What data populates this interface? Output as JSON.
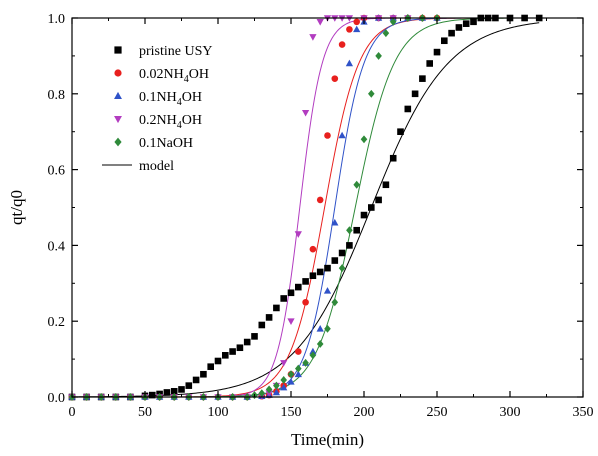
{
  "chart_data": {
    "type": "scatter",
    "xlabel": "Time(min)",
    "ylabel": "qt/q0",
    "xlim": [
      0,
      350
    ],
    "ylim": [
      0,
      1.0
    ],
    "xticks": [
      0,
      50,
      100,
      150,
      200,
      250,
      300,
      350
    ],
    "yticks": [
      0.0,
      0.2,
      0.4,
      0.6,
      0.8,
      1.0
    ],
    "xtick_labels": [
      "0",
      "50",
      "100",
      "150",
      "200",
      "250",
      "300",
      "350"
    ],
    "ytick_labels": [
      "0.0",
      "0.2",
      "0.4",
      "0.6",
      "0.8",
      "1.0"
    ],
    "grid": false,
    "legend_position": "top-left",
    "series": [
      {
        "name": "pristine USY",
        "name_parts": [
          {
            "t": "pristine USY",
            "sub": false
          }
        ],
        "marker": "square",
        "color": "#000000",
        "x": [
          0,
          10,
          20,
          30,
          40,
          50,
          55,
          60,
          65,
          70,
          75,
          80,
          85,
          90,
          95,
          100,
          105,
          110,
          115,
          120,
          125,
          130,
          135,
          140,
          145,
          150,
          155,
          160,
          165,
          170,
          175,
          180,
          185,
          190,
          195,
          200,
          205,
          210,
          215,
          220,
          225,
          230,
          235,
          240,
          245,
          250,
          255,
          260,
          265,
          270,
          275,
          280,
          285,
          290,
          300,
          310,
          320
        ],
        "y": [
          0,
          0,
          0,
          0,
          0,
          0.003,
          0.005,
          0.008,
          0.012,
          0.015,
          0.02,
          0.03,
          0.045,
          0.06,
          0.08,
          0.095,
          0.11,
          0.12,
          0.13,
          0.145,
          0.16,
          0.19,
          0.21,
          0.235,
          0.26,
          0.275,
          0.29,
          0.305,
          0.32,
          0.33,
          0.34,
          0.36,
          0.38,
          0.4,
          0.44,
          0.48,
          0.5,
          0.52,
          0.56,
          0.63,
          0.7,
          0.76,
          0.8,
          0.84,
          0.88,
          0.91,
          0.94,
          0.96,
          0.975,
          0.985,
          0.99,
          1.0,
          1.0,
          1.0,
          1.0,
          1.0,
          1.0
        ]
      },
      {
        "name": "0.02NH4OH",
        "name_parts": [
          {
            "t": "0.02NH",
            "sub": false
          },
          {
            "t": "4",
            "sub": true
          },
          {
            "t": "OH",
            "sub": false
          }
        ],
        "marker": "circle",
        "color": "#e8201e",
        "x": [
          0,
          10,
          20,
          30,
          40,
          50,
          60,
          70,
          80,
          90,
          100,
          110,
          120,
          130,
          135,
          140,
          145,
          150,
          155,
          160,
          165,
          170,
          175,
          180,
          185,
          190,
          195,
          200,
          210,
          220,
          230,
          240,
          250
        ],
        "y": [
          0,
          0,
          0,
          0,
          0,
          0,
          0,
          0,
          0,
          0,
          0,
          0,
          0,
          0.002,
          0.005,
          0.015,
          0.03,
          0.06,
          0.12,
          0.25,
          0.39,
          0.52,
          0.69,
          0.84,
          0.93,
          0.97,
          0.99,
          1.0,
          1.0,
          1.0,
          1.0,
          1.0,
          1.0
        ]
      },
      {
        "name": "0.1NH4OH",
        "name_parts": [
          {
            "t": "0.1NH",
            "sub": false
          },
          {
            "t": "4",
            "sub": true
          },
          {
            "t": "OH",
            "sub": false
          }
        ],
        "marker": "triangle-up",
        "color": "#2f52c8",
        "x": [
          0,
          10,
          20,
          30,
          40,
          50,
          60,
          70,
          80,
          90,
          100,
          110,
          120,
          130,
          135,
          140,
          145,
          150,
          155,
          160,
          165,
          170,
          175,
          180,
          185,
          190,
          195,
          200,
          210,
          220,
          230,
          240,
          250
        ],
        "y": [
          0,
          0,
          0,
          0,
          0,
          0,
          0,
          0,
          0,
          0,
          0,
          0,
          0,
          0.002,
          0.005,
          0.012,
          0.025,
          0.04,
          0.06,
          0.09,
          0.12,
          0.18,
          0.28,
          0.46,
          0.69,
          0.88,
          0.97,
          0.99,
          1.0,
          1.0,
          1.0,
          1.0,
          1.0
        ]
      },
      {
        "name": "0.2NH4OH",
        "name_parts": [
          {
            "t": "0.2NH",
            "sub": false
          },
          {
            "t": "4",
            "sub": true
          },
          {
            "t": "OH",
            "sub": false
          }
        ],
        "marker": "triangle-down",
        "color": "#b23cc0",
        "x": [
          0,
          10,
          20,
          30,
          40,
          50,
          60,
          70,
          80,
          90,
          100,
          110,
          120,
          130,
          135,
          140,
          145,
          150,
          155,
          160,
          165,
          170,
          175,
          180,
          185,
          190,
          200,
          210,
          220,
          230
        ],
        "y": [
          0,
          0,
          0,
          0,
          0,
          0,
          0,
          0,
          0,
          0,
          0,
          0,
          0,
          0.003,
          0.01,
          0.03,
          0.09,
          0.2,
          0.43,
          0.75,
          0.95,
          0.99,
          1.0,
          1.0,
          1.0,
          1.0,
          1.0,
          1.0,
          1.0,
          1.0
        ]
      },
      {
        "name": "0.1NaOH",
        "name_parts": [
          {
            "t": "0.1NaOH",
            "sub": false
          }
        ],
        "marker": "diamond",
        "color": "#2f8a3a",
        "x": [
          0,
          10,
          20,
          30,
          40,
          50,
          60,
          70,
          80,
          90,
          100,
          110,
          120,
          125,
          130,
          135,
          140,
          145,
          150,
          155,
          160,
          165,
          170,
          175,
          180,
          185,
          190,
          195,
          200,
          205,
          210,
          215,
          220,
          230,
          240,
          250
        ],
        "y": [
          0,
          0,
          0,
          0,
          0,
          0,
          0,
          0,
          0,
          0,
          0,
          0,
          0,
          0.005,
          0.01,
          0.02,
          0.03,
          0.045,
          0.06,
          0.075,
          0.09,
          0.11,
          0.14,
          0.18,
          0.25,
          0.34,
          0.44,
          0.56,
          0.68,
          0.8,
          0.9,
          0.96,
          0.99,
          1.0,
          1.0,
          1.0
        ]
      }
    ],
    "models": [
      {
        "label": "model",
        "center": 205,
        "steepness": 0.038,
        "color": "#000000",
        "xmin": 0,
        "xmax": 320
      },
      {
        "center": 173,
        "steepness": 0.085,
        "color": "#e8201e",
        "xmin": 0,
        "xmax": 300
      },
      {
        "center": 180,
        "steepness": 0.1,
        "color": "#2f52c8",
        "xmin": 0,
        "xmax": 300
      },
      {
        "center": 156,
        "steepness": 0.13,
        "color": "#b23cc0",
        "xmin": 0,
        "xmax": 300
      },
      {
        "center": 194,
        "steepness": 0.075,
        "color": "#2f8a3a",
        "xmin": 0,
        "xmax": 300
      }
    ],
    "legend_model_label": "model"
  }
}
